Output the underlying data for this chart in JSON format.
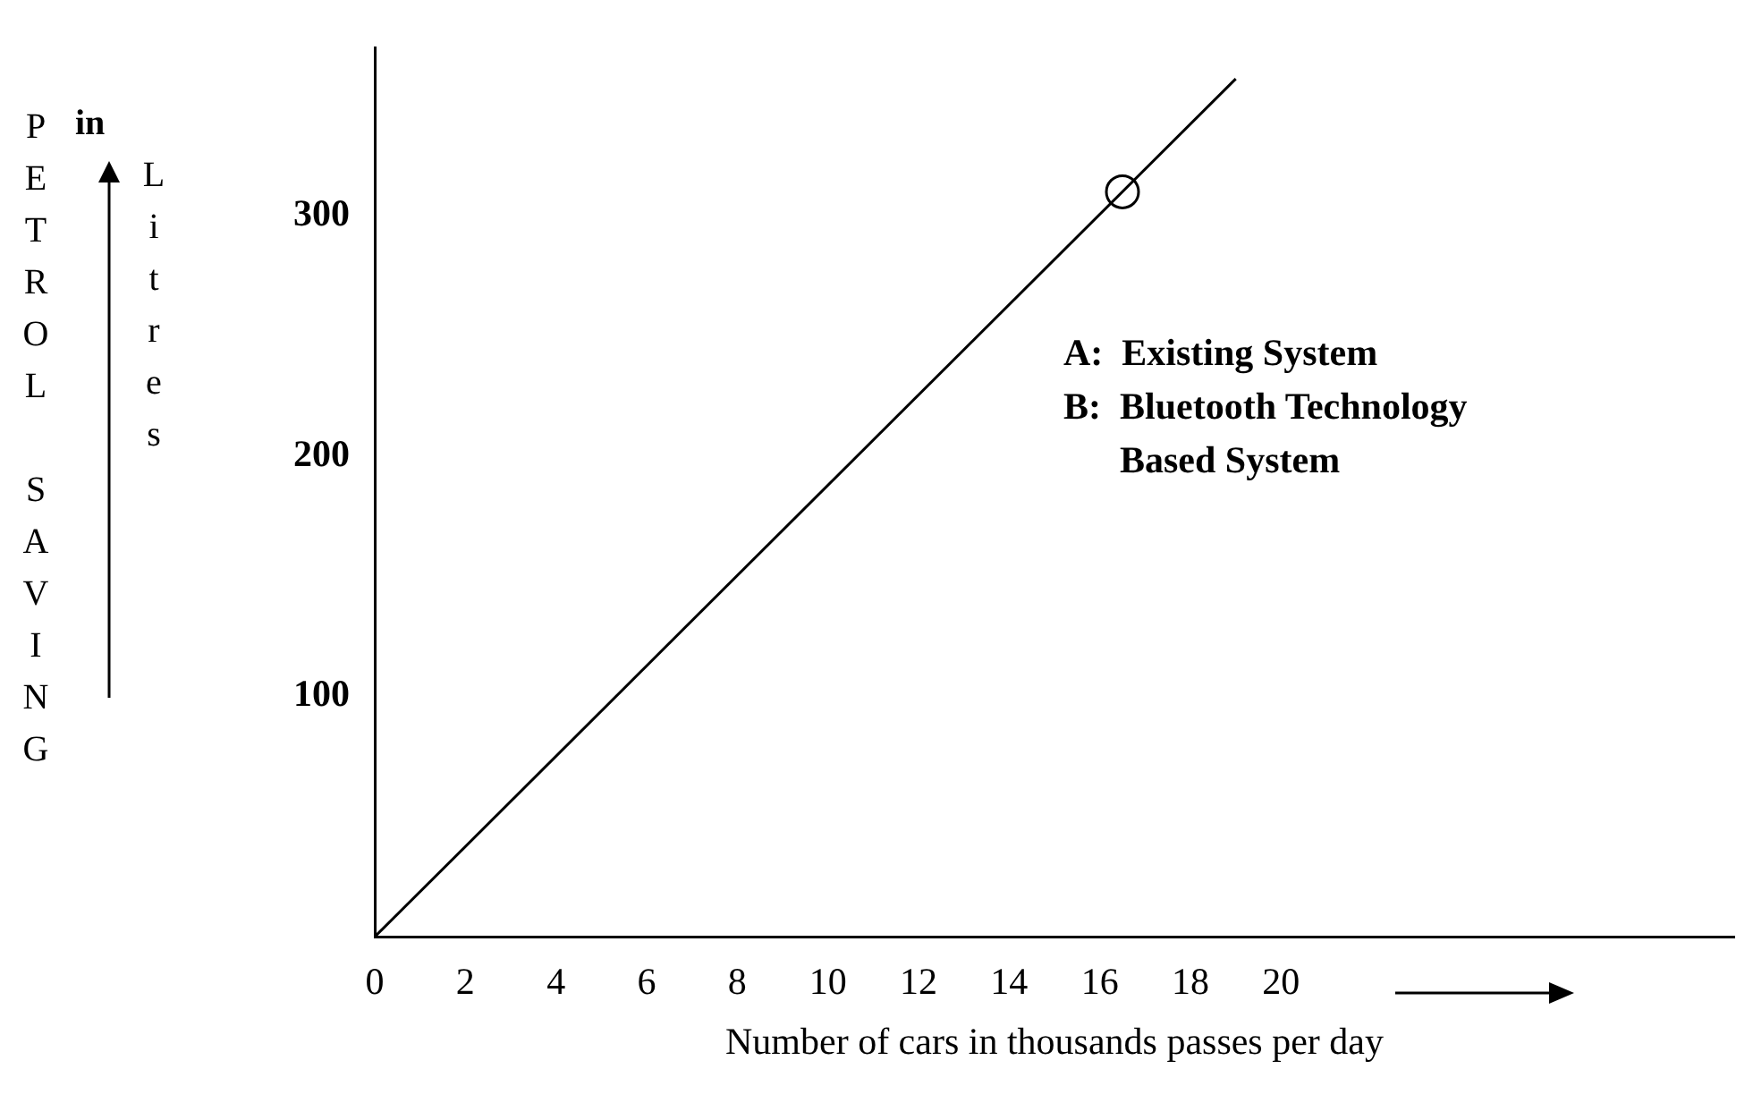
{
  "chart_data": {
    "type": "line",
    "xlabel": "Number of cars in thousands passes per day",
    "ylabel": "PETROL SAVING in Litres",
    "xlim": [
      0,
      30
    ],
    "xticks": [
      0,
      2,
      4,
      6,
      8,
      10,
      12,
      14,
      16,
      18,
      20
    ],
    "ylim": [
      0,
      370
    ],
    "yticks": [
      100,
      200,
      300
    ],
    "grid": false,
    "legend": false,
    "series": [
      {
        "color": "#000000",
        "x": [
          0,
          19
        ],
        "values": [
          0,
          357
        ],
        "marker": "none"
      },
      {
        "type": "scatter",
        "color": "#000000",
        "x": [
          16.5
        ],
        "values": [
          310
        ],
        "marker": "circle"
      }
    ],
    "annotations": [
      "A:  Existing System",
      "B:  Bluetooth Technology",
      "      Based System"
    ]
  }
}
